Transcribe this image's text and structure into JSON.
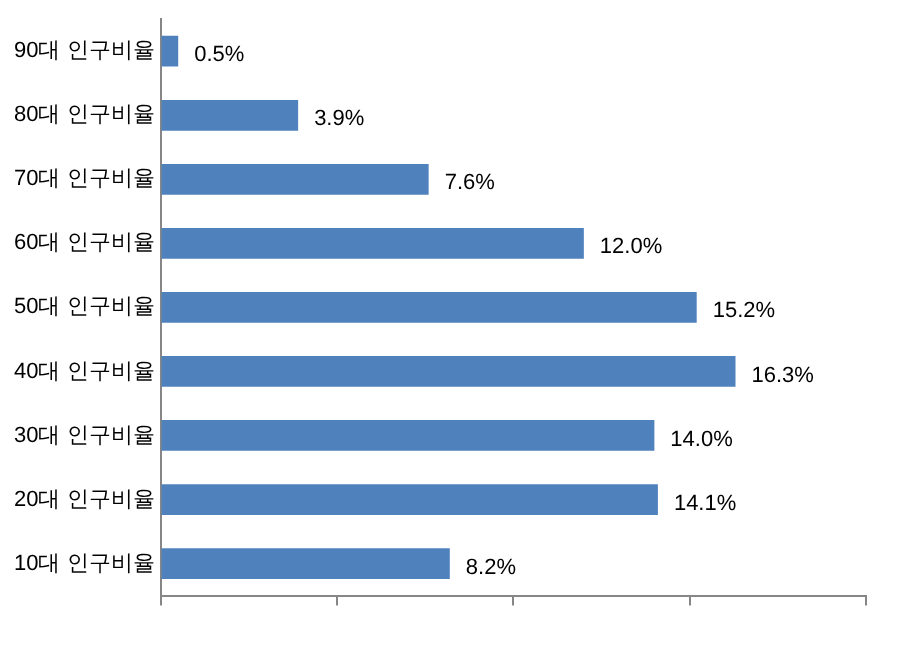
{
  "chart_data": {
    "type": "bar",
    "orientation": "horizontal",
    "categories": [
      "90대 인구비율",
      "80대 인구비율",
      "70대 인구비율",
      "60대 인구비율",
      "50대 인구비율",
      "40대 인구비율",
      "30대 인구비율",
      "20대 인구비율",
      "10대 인구비율"
    ],
    "values": [
      0.5,
      3.9,
      7.6,
      12.0,
      15.2,
      16.3,
      14.0,
      14.1,
      8.2
    ],
    "value_labels": [
      "0.5%",
      "3.9%",
      "7.6%",
      "12.0%",
      "15.2%",
      "16.3%",
      "14.0%",
      "14.1%",
      "8.2%"
    ],
    "color": "#4f81bd",
    "xlim": [
      0,
      20
    ],
    "xticks": [
      {
        "value": 0,
        "label": null
      },
      {
        "value": 5,
        "label": null
      },
      {
        "value": 10,
        "label": null
      },
      {
        "value": 15,
        "label": null
      },
      {
        "value": 20,
        "label": null
      }
    ],
    "tick_labels": "y",
    "grid": false,
    "legend": false
  }
}
